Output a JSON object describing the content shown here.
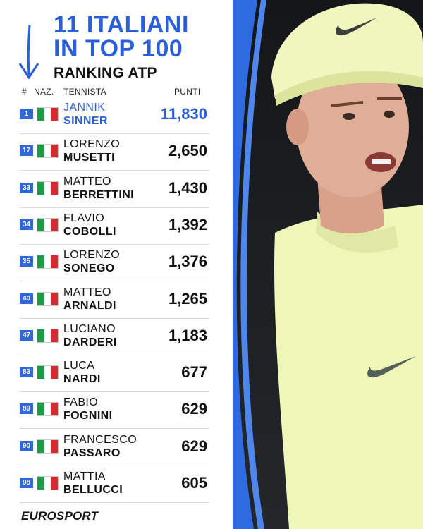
{
  "header": {
    "title_line1": "11 ITALIANI",
    "title_line2": "IN TOP 100",
    "subtitle": "RANKING ATP"
  },
  "columns": {
    "rank": "#",
    "nationality": "NAZ.",
    "player": "TENNISTA",
    "points": "PUNTI"
  },
  "rows": [
    {
      "rank": "1",
      "first": "JANNIK",
      "last": "SINNER",
      "points": "11,830"
    },
    {
      "rank": "17",
      "first": "LORENZO",
      "last": "MUSETTI",
      "points": "2,650"
    },
    {
      "rank": "33",
      "first": "MATTEO",
      "last": "BERRETTINI",
      "points": "1,430"
    },
    {
      "rank": "34",
      "first": "FLAVIO",
      "last": "COBOLLI",
      "points": "1,392"
    },
    {
      "rank": "35",
      "first": "LORENZO",
      "last": "SONEGO",
      "points": "1,376"
    },
    {
      "rank": "40",
      "first": "MATTEO",
      "last": "ARNALDI",
      "points": "1,265"
    },
    {
      "rank": "47",
      "first": "LUCIANO",
      "last": "DARDERI",
      "points": "1,183"
    },
    {
      "rank": "83",
      "first": "LUCA",
      "last": "NARDI",
      "points": "677"
    },
    {
      "rank": "89",
      "first": "FABIO",
      "last": "FOGNINI",
      "points": "629"
    },
    {
      "rank": "90",
      "first": "FRANCESCO",
      "last": "PASSARO",
      "points": "629"
    },
    {
      "rank": "98",
      "first": "MATTIA",
      "last": "BELLUCCI",
      "points": "605"
    }
  ],
  "footer": {
    "brand": "EUROSPORT"
  },
  "colors": {
    "accent": "#2b5fd9",
    "rank_badge": "#2f66d8",
    "flag_green": "#1f9a4a",
    "flag_red": "#d42a34",
    "shirt": "#eef6b8"
  }
}
